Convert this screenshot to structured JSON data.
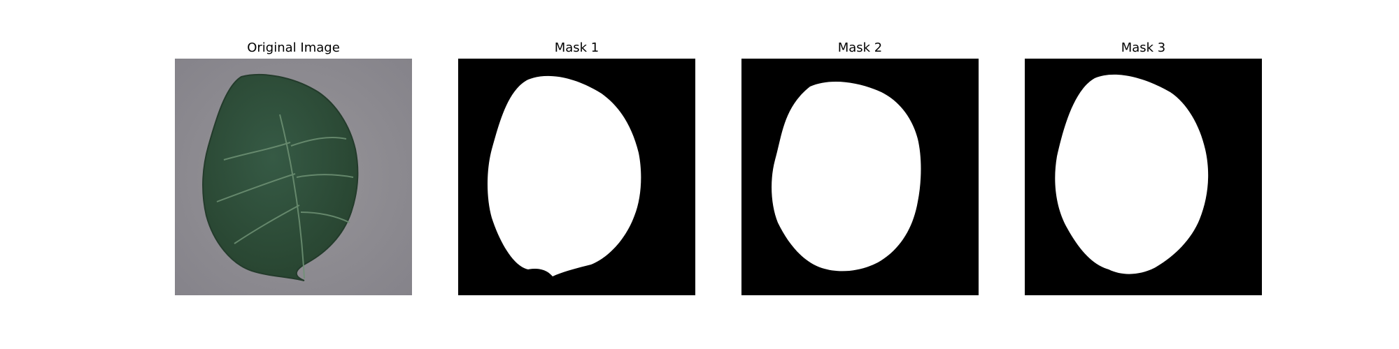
{
  "figure": {
    "panels": [
      {
        "title": "Original Image",
        "kind": "photo",
        "subject": "green-leaf"
      },
      {
        "title": "Mask 1",
        "kind": "binary-mask"
      },
      {
        "title": "Mask 2",
        "kind": "binary-mask"
      },
      {
        "title": "Mask 3",
        "kind": "binary-mask"
      }
    ],
    "colors": {
      "background_photo": "#8c8a8e",
      "leaf": "#2f4f3d",
      "leaf_vein": "#7f9e82",
      "mask_background": "#000000",
      "mask_foreground": "#ffffff"
    }
  }
}
